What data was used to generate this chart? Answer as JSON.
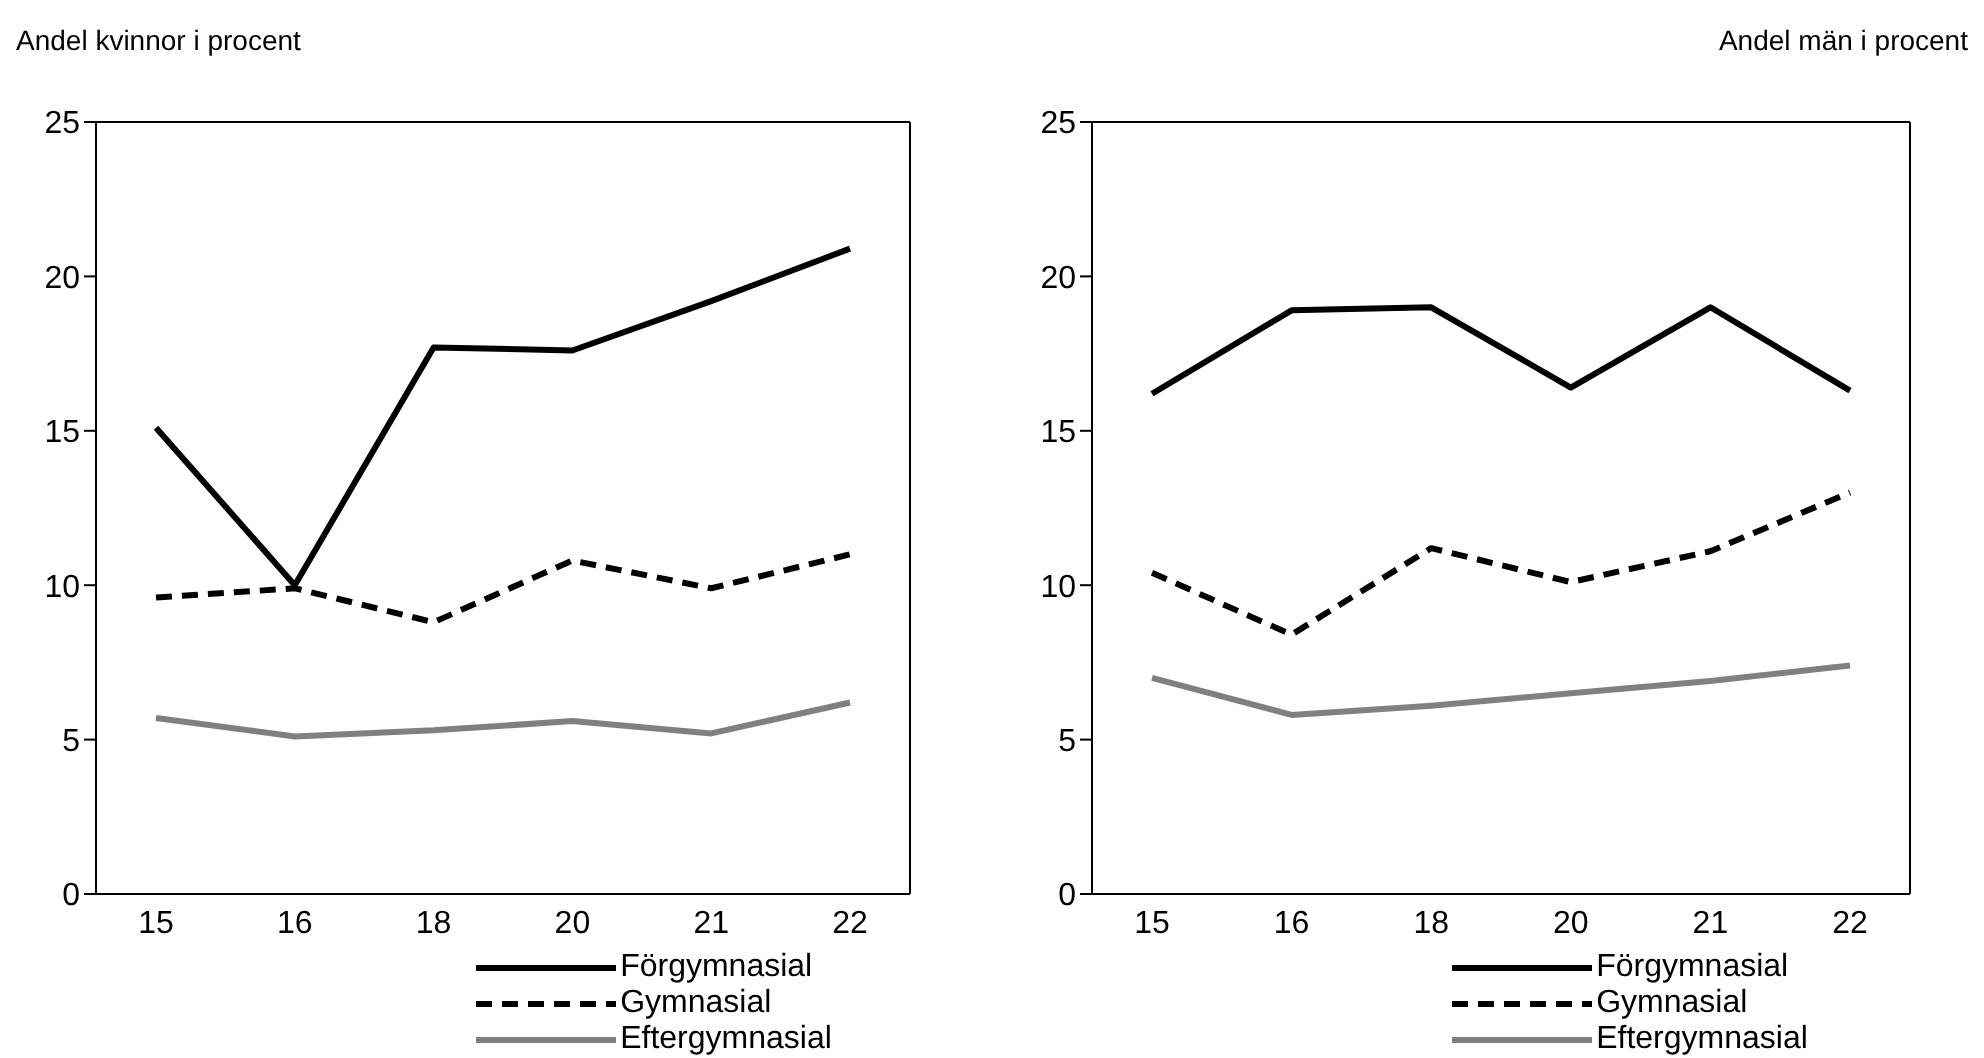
{
  "chart_data": [
    {
      "type": "line",
      "ylabel": "Andel kvinnor i procent",
      "categories": [
        "15",
        "16",
        "18",
        "20",
        "21",
        "22"
      ],
      "ylim": [
        0,
        25
      ],
      "yticks": [
        0,
        5,
        10,
        15,
        20,
        25
      ],
      "legend": "bottom",
      "marker": "none",
      "series": [
        {
          "name": "Förgymnasial",
          "color": "#000000",
          "line_style": "solid",
          "values": [
            15.1,
            10.0,
            17.7,
            17.6,
            19.2,
            20.9
          ]
        },
        {
          "name": "Gymnasial",
          "color": "#000000",
          "line_style": "dashed",
          "values": [
            9.6,
            9.9,
            8.8,
            10.8,
            9.9,
            11.0
          ]
        },
        {
          "name": "Eftergymnasial",
          "color": "#808080",
          "line_style": "solid",
          "values": [
            5.7,
            5.1,
            5.3,
            5.6,
            5.2,
            6.2
          ]
        }
      ]
    },
    {
      "type": "line",
      "ylabel": "Andel män i procent",
      "categories": [
        "15",
        "16",
        "18",
        "20",
        "21",
        "22"
      ],
      "ylim": [
        0,
        25
      ],
      "yticks": [
        0,
        5,
        10,
        15,
        20,
        25
      ],
      "legend": "bottom",
      "marker": "none",
      "series": [
        {
          "name": "Förgymnasial",
          "color": "#000000",
          "line_style": "solid",
          "values": [
            16.2,
            18.9,
            19.0,
            16.4,
            19.0,
            16.3
          ]
        },
        {
          "name": "Gymnasial",
          "color": "#000000",
          "line_style": "dashed",
          "values": [
            10.4,
            8.4,
            11.2,
            10.1,
            11.1,
            13.0
          ]
        },
        {
          "name": "Eftergymnasial",
          "color": "#808080",
          "line_style": "solid",
          "values": [
            7.0,
            5.8,
            6.1,
            6.5,
            6.9,
            7.4
          ]
        }
      ]
    }
  ]
}
